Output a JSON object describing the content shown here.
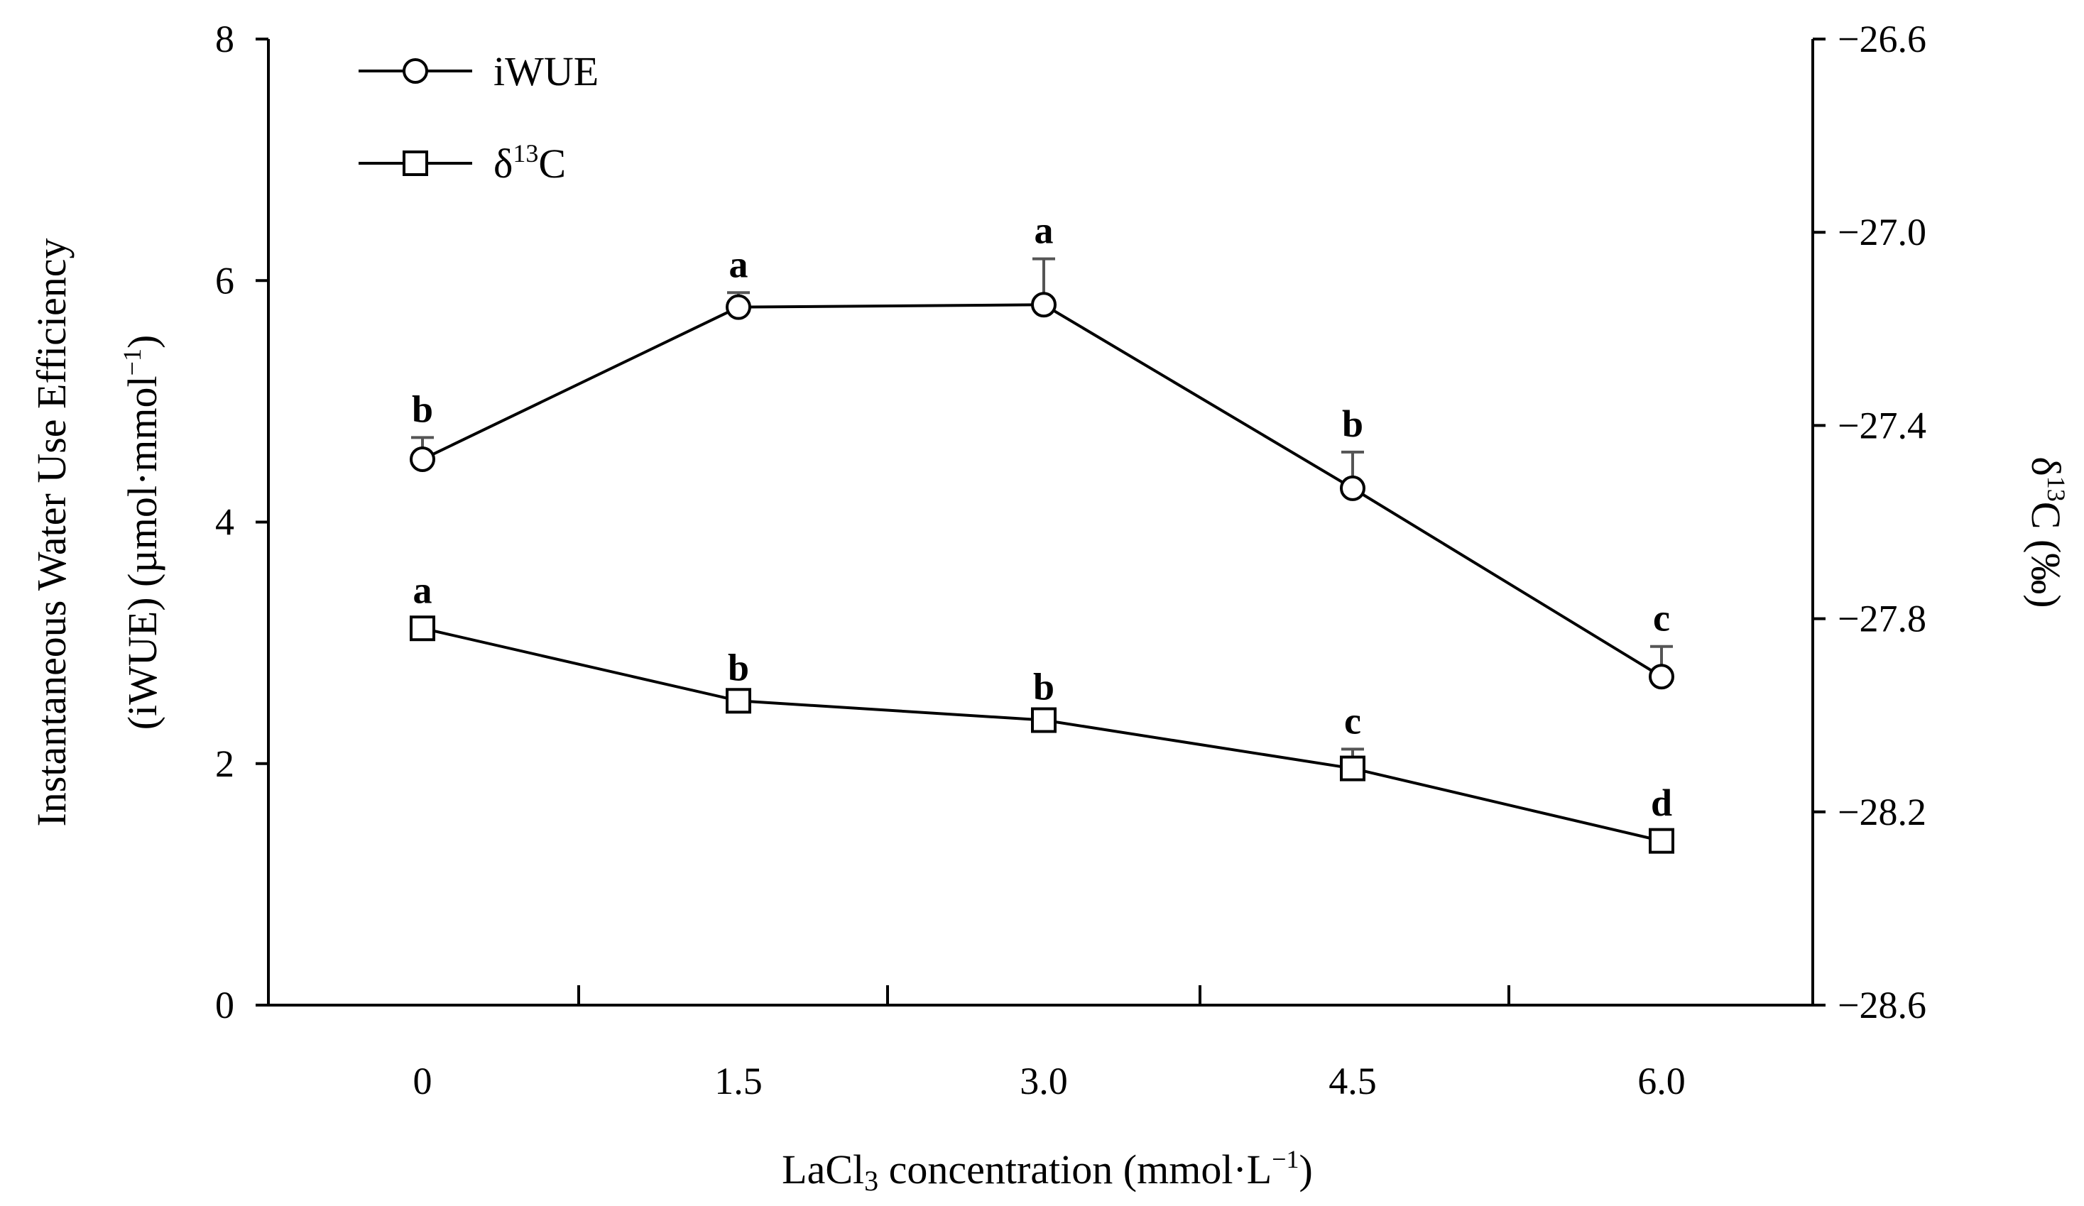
{
  "chart_data": {
    "type": "line",
    "x": [
      0,
      1.5,
      3.0,
      4.5,
      6.0
    ],
    "x_tick_labels": [
      "0",
      "1.5",
      "3.0",
      "4.5",
      "6.0"
    ],
    "xlabel": {
      "pre": "LaCl",
      "sub": "3",
      "post": " concentration (mmol·L",
      "sup": "−1",
      "end": ")"
    },
    "ylabel_left": {
      "line1": "Instantaneous Water Use Efficiency",
      "line2_pre": "(iWUE) (µmol·mmol",
      "line2_sup": "−1",
      "line2_end": ")"
    },
    "ylabel_right": {
      "pre": "δ",
      "sup": "13",
      "post": "C (‰)"
    },
    "ylim_left": [
      0,
      8
    ],
    "ylim_right": [
      -28.6,
      -26.6
    ],
    "y_left_ticks": [
      0,
      2,
      4,
      6,
      8
    ],
    "y_left_tick_labels": [
      "0",
      "2",
      "4",
      "6",
      "8"
    ],
    "y_right_ticks": [
      -28.6,
      -28.2,
      -27.8,
      -27.4,
      -27.0,
      -26.6
    ],
    "y_right_tick_labels": [
      "−28.6",
      "−28.2",
      "−27.8",
      "−27.4",
      "−27.0",
      "−26.6"
    ],
    "series": [
      {
        "name": "iWUE",
        "axis": "left",
        "marker": "circle",
        "values": [
          4.52,
          5.78,
          5.8,
          4.28,
          2.72
        ],
        "errors": [
          0.18,
          0.12,
          0.38,
          0.3,
          0.25
        ],
        "labels": [
          "b",
          "a",
          "a",
          "b",
          "c"
        ]
      },
      {
        "name": "δ13C",
        "axis": "right",
        "marker": "square",
        "values": [
          -27.82,
          -27.97,
          -28.01,
          -28.11,
          -28.26
        ],
        "errors": [
          0.02,
          0.01,
          0.01,
          0.04,
          0.02
        ],
        "labels": [
          "a",
          "b",
          "b",
          "c",
          "d"
        ]
      }
    ],
    "legend": {
      "position": "top-left",
      "entries": [
        {
          "name": "iWUE",
          "marker": "circle"
        },
        {
          "name_pre": "δ",
          "name_sup": "13",
          "name_post": "C",
          "marker": "square"
        }
      ]
    },
    "colors": {
      "line": "#000000",
      "error_bar": "#555555",
      "background": "#ffffff"
    }
  }
}
